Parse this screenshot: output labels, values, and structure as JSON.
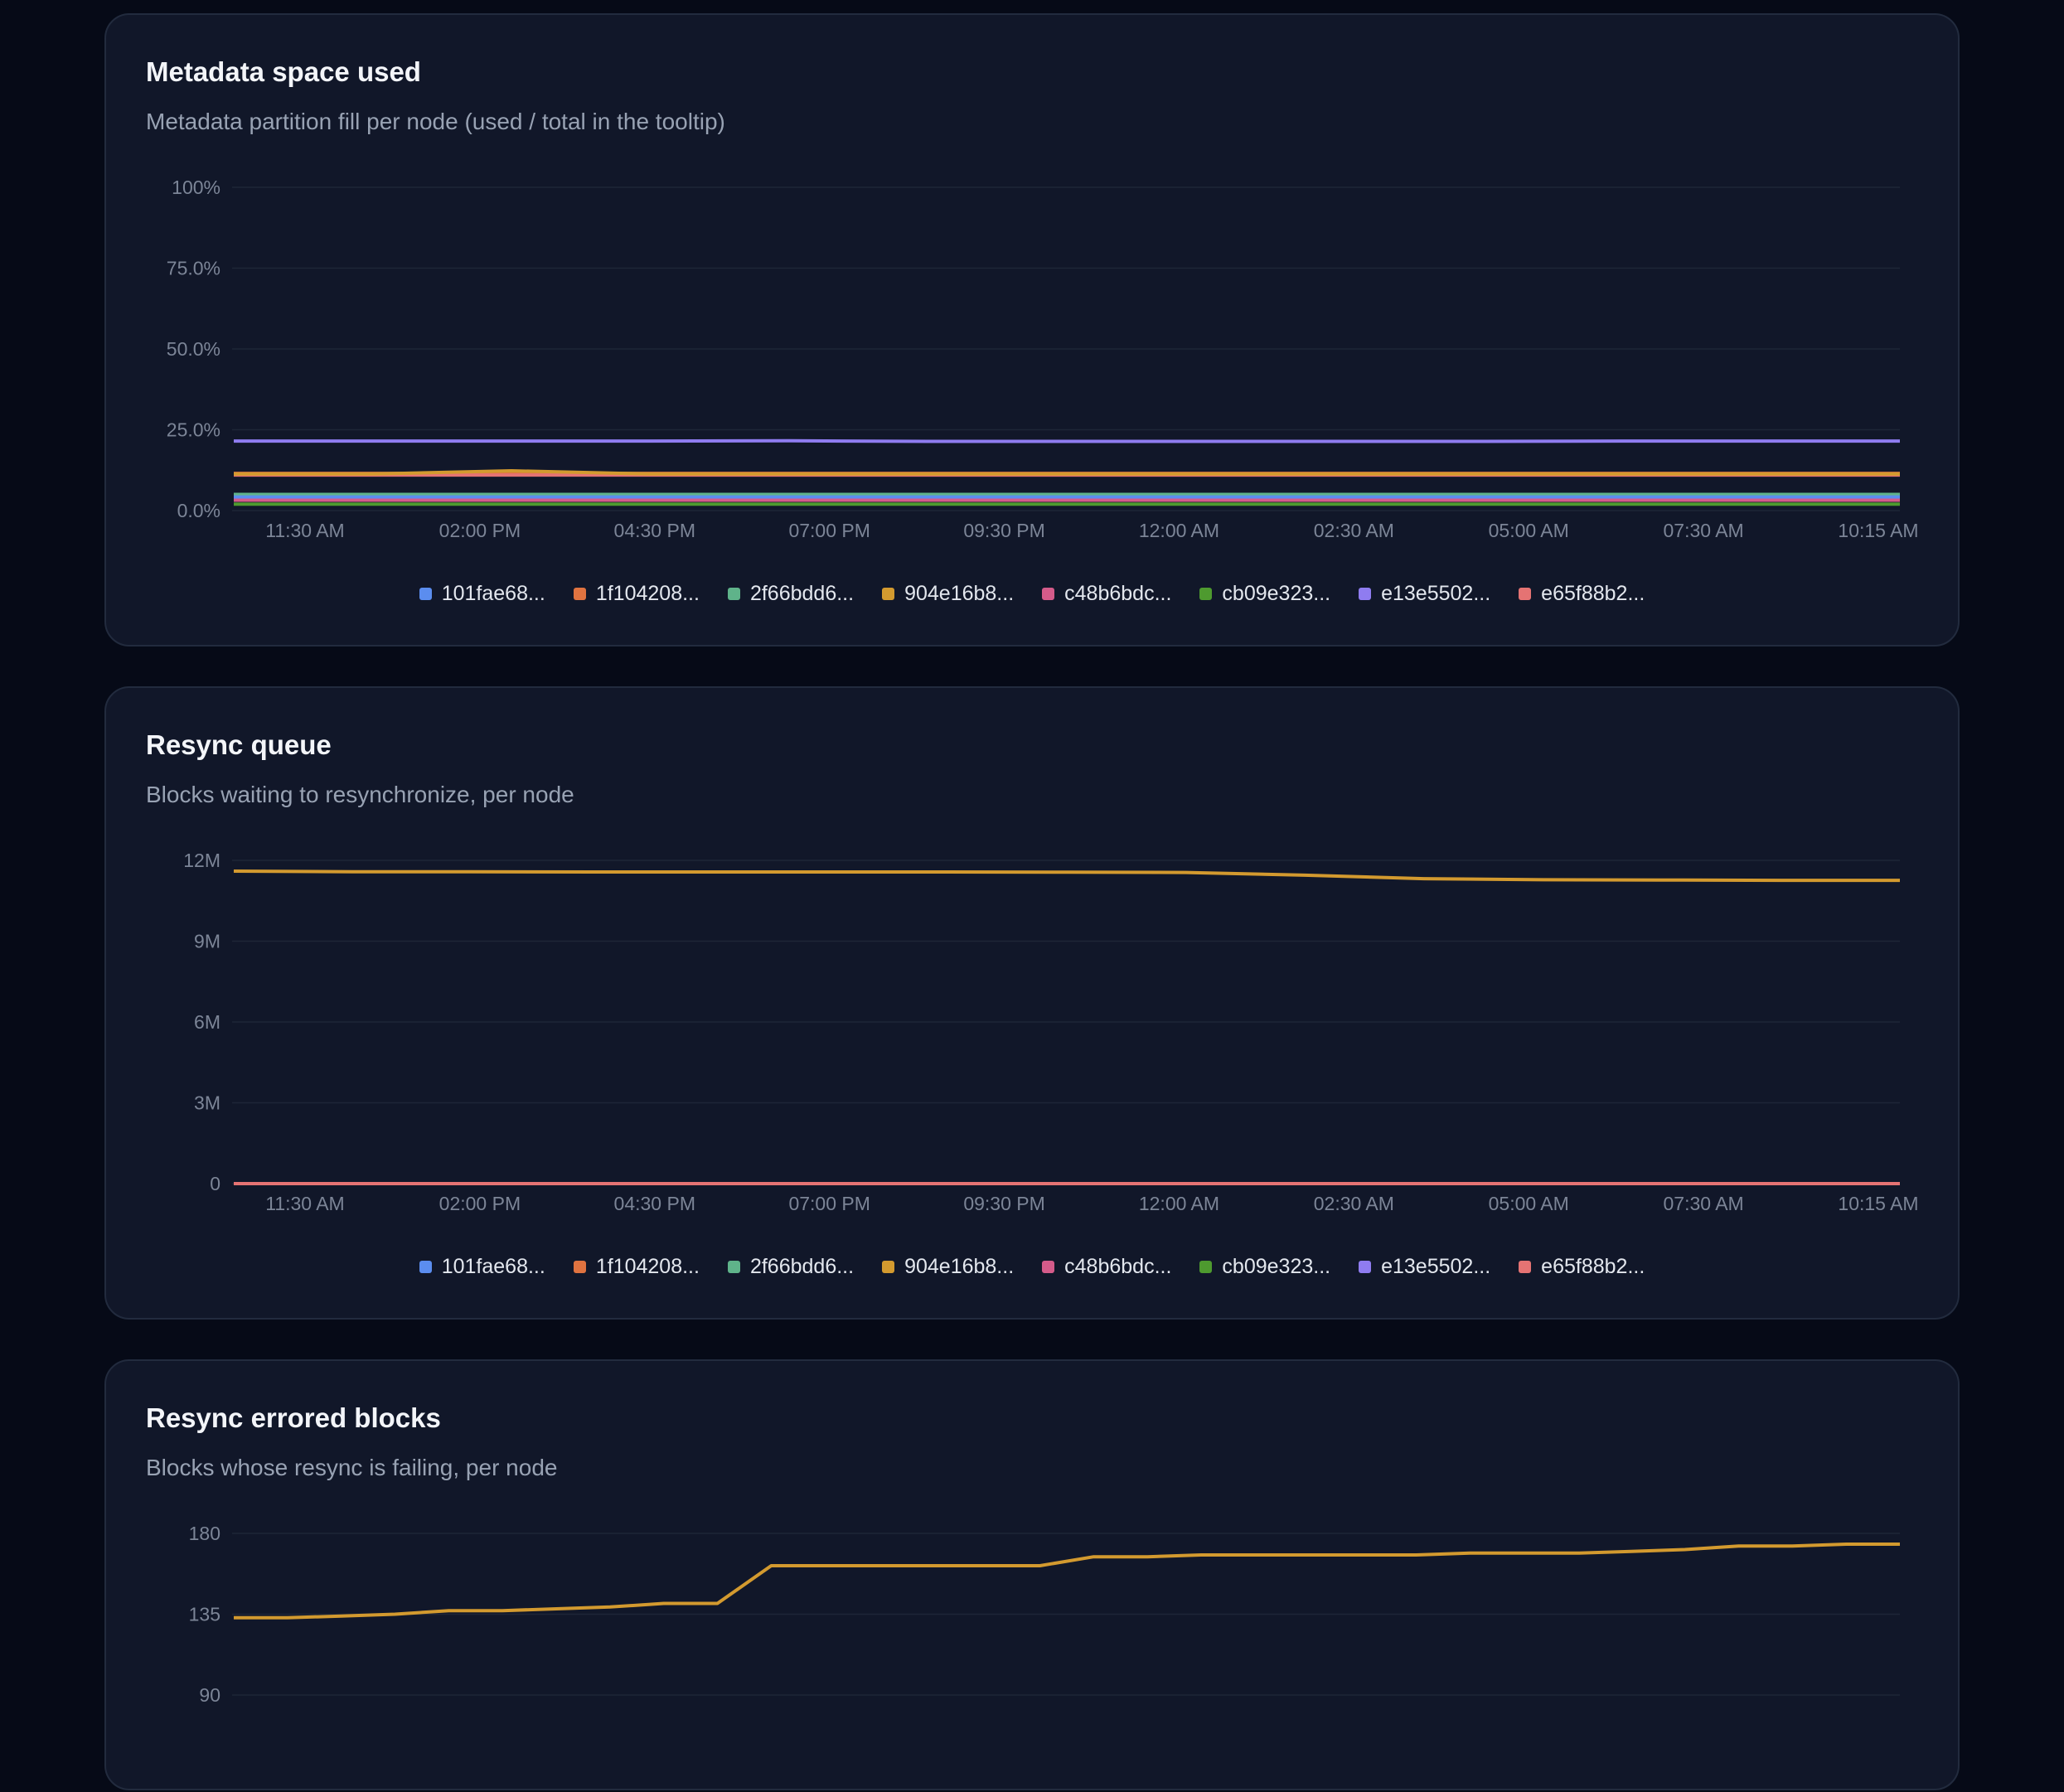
{
  "x_ticks": [
    "11:30 AM",
    "02:00 PM",
    "04:30 PM",
    "07:00 PM",
    "09:30 PM",
    "12:00 AM",
    "02:30 AM",
    "05:00 AM",
    "07:30 AM",
    "10:15 AM"
  ],
  "legend": [
    {
      "name": "101fae68...",
      "color": "#5b8def"
    },
    {
      "name": "1f104208...",
      "color": "#e07340"
    },
    {
      "name": "2f66bdd6...",
      "color": "#5fb38a"
    },
    {
      "name": "904e16b8...",
      "color": "#d39a2f"
    },
    {
      "name": "c48b6bdc...",
      "color": "#d45b8a"
    },
    {
      "name": "cb09e323...",
      "color": "#4e9a2f"
    },
    {
      "name": "e13e5502...",
      "color": "#8f7cf0"
    },
    {
      "name": "e65f88b2...",
      "color": "#e57373"
    }
  ],
  "charts": [
    {
      "title": "Metadata space used",
      "subtitle": "Metadata partition fill per node (used / total in the tooltip)",
      "chart_data": {
        "type": "line",
        "y_ticks": [
          "0.0%",
          "25.0%",
          "50.0%",
          "75.0%",
          "100%"
        ],
        "ylim": [
          0,
          100
        ],
        "series": [
          {
            "name": "e13e5502...",
            "color": "#8f7cf0",
            "values": [
              21.5,
              21.5,
              21.5,
              21.5,
              21.6,
              21.4,
              21.4,
              21.4,
              21.4,
              21.4,
              21.5,
              21.5,
              21.5
            ]
          },
          {
            "name": "1f104208...",
            "color": "#e07340",
            "values": [
              11.5,
              11.5,
              11.5,
              11.5,
              11.5,
              11.5,
              11.5,
              11.5,
              11.5,
              11.5,
              11.5,
              11.5,
              11.5
            ]
          },
          {
            "name": "e65f88b2...",
            "color": "#e57373",
            "values": [
              11.0,
              11.0,
              11.0,
              11.0,
              11.0,
              11.0,
              11.0,
              11.0,
              11.0,
              11.0,
              11.0,
              11.0,
              11.0
            ]
          },
          {
            "name": "904e16b8...",
            "color": "#d39a2f",
            "values": [
              11.3,
              11.3,
              12.3,
              11.3,
              11.3,
              11.3,
              11.3,
              11.3,
              11.3,
              11.3,
              11.3,
              11.3,
              11.3
            ]
          },
          {
            "name": "2f66bdd6...",
            "color": "#5fb38a",
            "values": [
              5.0,
              5.0,
              5.0,
              5.0,
              5.0,
              5.0,
              5.0,
              5.0,
              5.0,
              5.0,
              5.0,
              5.0,
              5.0
            ]
          },
          {
            "name": "101fae68...",
            "color": "#5b8def",
            "values": [
              4.2,
              4.2,
              4.2,
              4.2,
              4.2,
              4.2,
              4.2,
              4.2,
              4.2,
              4.2,
              4.2,
              4.2,
              4.2
            ]
          },
          {
            "name": "c48b6bdc...",
            "color": "#d45b8a",
            "values": [
              3.2,
              3.2,
              3.2,
              3.2,
              3.2,
              3.2,
              3.2,
              3.2,
              3.2,
              3.2,
              3.2,
              3.2,
              3.2
            ]
          },
          {
            "name": "cb09e323...",
            "color": "#4e9a2f",
            "values": [
              2.0,
              2.0,
              2.0,
              2.0,
              2.0,
              2.0,
              2.0,
              2.0,
              2.0,
              2.0,
              2.0,
              2.0,
              2.0
            ]
          }
        ]
      }
    },
    {
      "title": "Resync queue",
      "subtitle": "Blocks waiting to resynchronize, per node",
      "chart_data": {
        "type": "line",
        "y_ticks": [
          "0",
          "3M",
          "6M",
          "9M",
          "12M"
        ],
        "ylim": [
          0,
          12000000
        ],
        "series": [
          {
            "name": "904e16b8...",
            "color": "#d39a2f",
            "values": [
              11600000,
              11580000,
              11580000,
              11570000,
              11570000,
              11570000,
              11570000,
              11560000,
              11550000,
              11450000,
              11320000,
              11280000,
              11270000,
              11260000,
              11260000
            ]
          },
          {
            "name": "e65f88b2...",
            "color": "#e57373",
            "values": [
              0,
              0,
              0,
              0,
              0,
              0,
              0,
              0,
              0,
              0,
              0,
              0,
              0,
              0,
              0
            ]
          }
        ]
      }
    },
    {
      "title": "Resync errored blocks",
      "subtitle": "Blocks whose resync is failing, per node",
      "chart_data": {
        "type": "line",
        "y_ticks": [
          "90",
          "135",
          "180"
        ],
        "ylim": [
          45,
          180
        ],
        "series": [
          {
            "name": "904e16b8...",
            "color": "#d39a2f",
            "values": [
              133,
              133,
              134,
              135,
              137,
              137,
              138,
              139,
              141,
              141,
              162,
              162,
              162,
              162,
              162,
              162,
              167,
              167,
              168,
              168,
              168,
              168,
              168,
              169,
              169,
              169,
              170,
              171,
              173,
              173,
              174,
              174
            ]
          }
        ]
      }
    }
  ]
}
